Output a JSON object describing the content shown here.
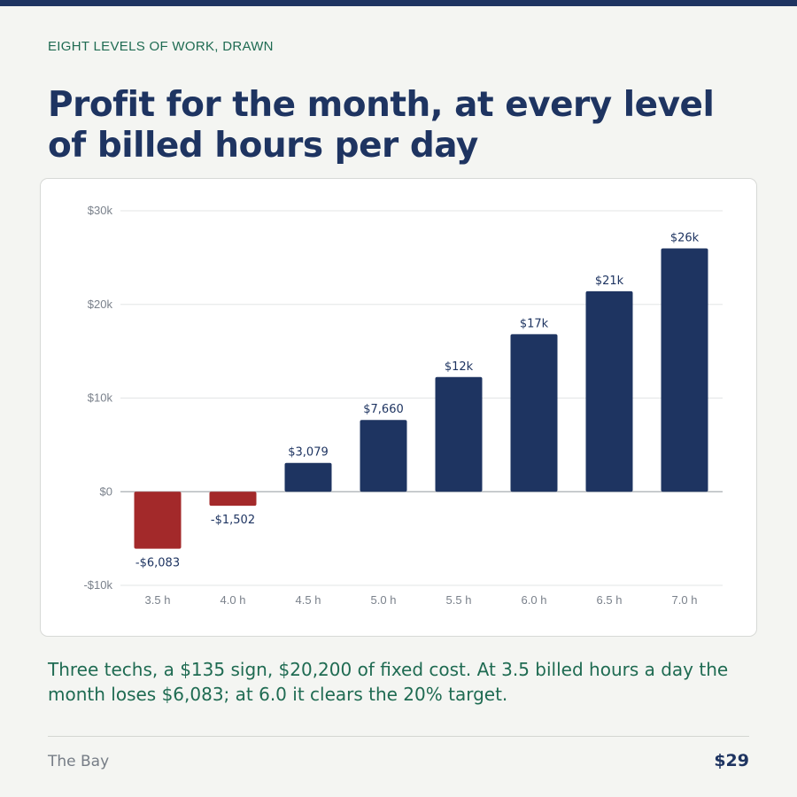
{
  "kicker": "EIGHT LEVELS OF WORK, DRAWN",
  "title": "Profit for the month, at every level of billed hours per day",
  "caption": "Three techs, a $135 sign, $20,200 of fixed cost. At 3.5 billed hours a day the month loses $6,083; at 6.0 it clears the 20% target.",
  "footer": {
    "brand": "The Bay",
    "page": "$29"
  },
  "colors": {
    "positive": "#1e3461",
    "negative": "#a3292a",
    "accent_text": "#1f6b52"
  },
  "chart_data": {
    "type": "bar",
    "title": "",
    "xlabel": "",
    "ylabel": "",
    "categories": [
      "3.5 h",
      "4.0 h",
      "4.5 h",
      "5.0 h",
      "5.5 h",
      "6.0 h",
      "6.5 h",
      "7.0 h"
    ],
    "values": [
      -6083,
      -1502,
      3079,
      7660,
      12241,
      16822,
      21403,
      25984
    ],
    "labels": [
      "-$6,083",
      "-$1,502",
      "$3,079",
      "$7,660",
      "$12k",
      "$17k",
      "$21k",
      "$26k"
    ],
    "ylim": [
      -10000,
      30000
    ],
    "yticks": [
      30000,
      20000,
      10000,
      0,
      -10000
    ],
    "ytick_labels": [
      "$30k",
      "$20k",
      "$10k",
      "$0",
      "-$10k"
    ],
    "grid": true,
    "legend": "none"
  }
}
